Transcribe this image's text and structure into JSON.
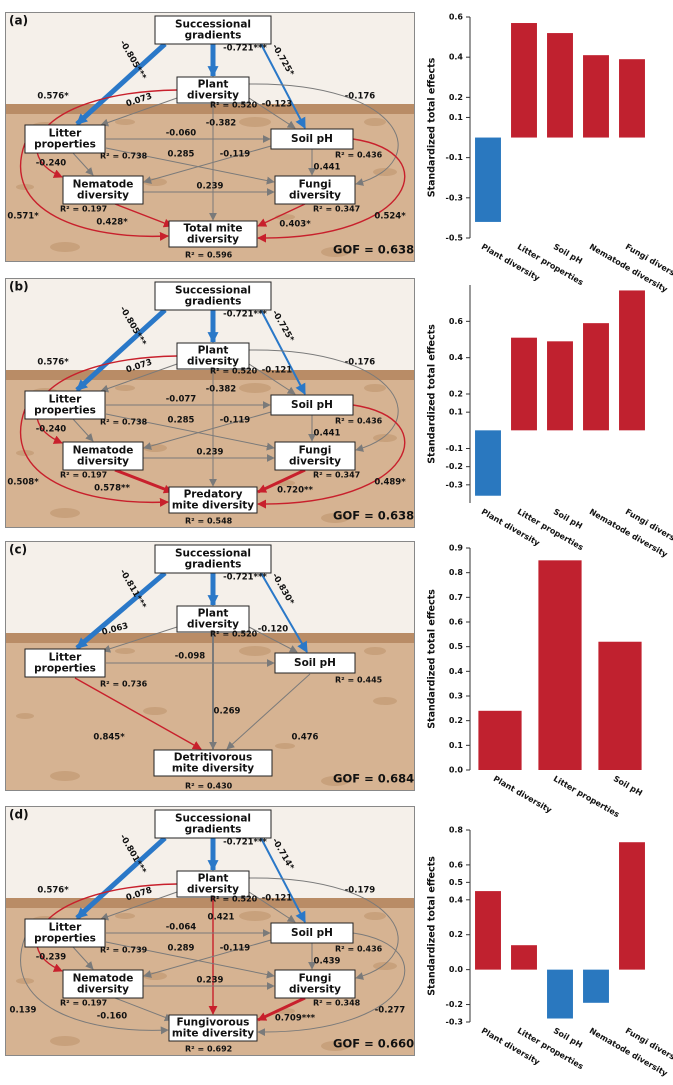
{
  "diagrams": [
    {
      "label": "(a)",
      "nodes": [
        {
          "label": [
            "Successional",
            "gradients"
          ]
        },
        {
          "label": [
            "Plant",
            "diversity"
          ],
          "r2": "R² = 0.520"
        },
        {
          "label": [
            "Litter",
            "properties"
          ],
          "r2": "R² = 0.738"
        },
        {
          "label": [
            "Soil pH"
          ],
          "r2": "R² = 0.436"
        },
        {
          "label": [
            "Nematode",
            "diversity"
          ],
          "r2": "R² = 0.197"
        },
        {
          "label": [
            "Fungi",
            "diversity"
          ],
          "r2": "R² = 0.347"
        },
        {
          "label": [
            "Total mite",
            "diversity"
          ],
          "r2": "R² = 0.596"
        }
      ],
      "coefficients": [
        "-0.805***",
        "-0.721***",
        "-0.725*",
        "0.576*",
        "0.073",
        "-0.123",
        "-0.176",
        "-0.382",
        "-0.060",
        "0.285",
        "-0.119",
        "-0.240",
        "0.441",
        "0.239",
        "0.571*",
        "0.428*",
        "0.403*",
        "0.524*"
      ],
      "gof": "GOF = 0.638"
    },
    {
      "label": "(b)",
      "nodes": [
        {
          "label": [
            "Successional",
            "gradients"
          ]
        },
        {
          "label": [
            "Plant",
            "diversity"
          ],
          "r2": "R² = 0.520"
        },
        {
          "label": [
            "Litter",
            "properties"
          ],
          "r2": "R² = 0.738"
        },
        {
          "label": [
            "Soil pH"
          ],
          "r2": "R² = 0.436"
        },
        {
          "label": [
            "Nematode",
            "diversity"
          ],
          "r2": "R² = 0.197"
        },
        {
          "label": [
            "Fungi",
            "diversity"
          ],
          "r2": "R² = 0.347"
        },
        {
          "label": [
            "Predatory",
            "mite diversity"
          ],
          "r2": "R² = 0.548"
        }
      ],
      "coefficients": [
        "-0.805***",
        "-0.721***",
        "-0.725*",
        "0.576*",
        "0.073",
        "-0.121",
        "-0.176",
        "-0.382",
        "-0.077",
        "0.285",
        "-0.119",
        "-0.240",
        "0.441",
        "0.239",
        "0.508*",
        "0.578**",
        "0.720**",
        "0.489*"
      ],
      "gof": "GOF = 0.638"
    },
    {
      "label": "(c)",
      "nodes": [
        {
          "label": [
            "Successional",
            "gradients"
          ]
        },
        {
          "label": [
            "Plant",
            "diversity"
          ],
          "r2": "R² = 0.520"
        },
        {
          "label": [
            "Litter",
            "properties"
          ],
          "r2": "R² = 0.736"
        },
        {
          "label": [
            "Soil pH"
          ],
          "r2": "R² = 0.445"
        },
        {
          "label": [
            "Detritivorous",
            "mite diversity"
          ],
          "r2": "R² = 0.430"
        }
      ],
      "coefficients": [
        "-0.811***",
        "-0.721***",
        "-0.830*",
        "0.063",
        "-0.120",
        "-0.098",
        "0.269",
        "0.845*",
        "0.476"
      ],
      "gof": "GOF = 0.684"
    },
    {
      "label": "(d)",
      "nodes": [
        {
          "label": [
            "Successional",
            "gradients"
          ]
        },
        {
          "label": [
            "Plant",
            "diversity"
          ],
          "r2": "R² = 0.520"
        },
        {
          "label": [
            "Litter",
            "properties"
          ],
          "r2": "R² = 0.739"
        },
        {
          "label": [
            "Soil pH"
          ],
          "r2": "R² = 0.436"
        },
        {
          "label": [
            "Nematode",
            "diversity"
          ],
          "r2": "R² = 0.197"
        },
        {
          "label": [
            "Fungi",
            "diversity"
          ],
          "r2": "R² = 0.348"
        },
        {
          "label": [
            "Fungivorous",
            "mite diversity"
          ],
          "r2": "R² = 0.692"
        }
      ],
      "coefficients": [
        "-0.801***",
        "-0.721***",
        "-0.714*",
        "0.576*",
        "0.078",
        "-0.121",
        "-0.179",
        "0.421",
        "-0.064",
        "0.289",
        "-0.119",
        "-0.239",
        "0.439",
        "0.239",
        "0.139",
        "-0.160",
        "0.709***",
        "-0.277"
      ],
      "gof": "GOF = 0.660"
    }
  ],
  "chart_data": [
    {
      "type": "bar",
      "y_label": "Standardized total effects",
      "categories": [
        "Plant diversity",
        "Litter properties",
        "Soil pH",
        "Nematode diversity",
        "Fungi diversity"
      ],
      "values": [
        -0.42,
        0.57,
        0.52,
        0.41,
        0.39
      ],
      "colors": [
        "#2a78bf",
        "#c0212f",
        "#c0212f",
        "#c0212f",
        "#c0212f"
      ],
      "ylim": [
        -0.5,
        0.6
      ],
      "yticks": [
        0.6,
        0.4,
        0.2,
        0.1,
        -0.1,
        -0.3,
        -0.5
      ]
    },
    {
      "type": "bar",
      "y_label": "Standardized total effects",
      "categories": [
        "Plant diversity",
        "Litter properties",
        "Soil pH",
        "Nematode diversity",
        "Fungi diversity"
      ],
      "values": [
        -0.36,
        0.51,
        0.49,
        0.59,
        0.77
      ],
      "colors": [
        "#2a78bf",
        "#c0212f",
        "#c0212f",
        "#c0212f",
        "#c0212f"
      ],
      "ylim": [
        -0.4,
        0.8
      ],
      "yticks": [
        0.6,
        0.4,
        0.2,
        0.1,
        -0.1,
        -0.2,
        -0.3
      ]
    },
    {
      "type": "bar",
      "y_label": "Standardized total effects",
      "categories": [
        "Plant diversity",
        "Litter properties",
        "Soil pH"
      ],
      "values": [
        0.24,
        0.85,
        0.52
      ],
      "colors": [
        "#c0212f",
        "#c0212f",
        "#c0212f"
      ],
      "ylim": [
        0,
        0.9
      ],
      "yticks": [
        0.9,
        0.8,
        0.7,
        0.6,
        0.5,
        0.4,
        0.3,
        0.2,
        0.1,
        {
          "value": 0,
          "label": "0.0"
        }
      ]
    },
    {
      "type": "bar",
      "y_label": "Standardized total effects",
      "categories": [
        "Plant diversity",
        "Litter properties",
        "Soil pH",
        "Nematode diversity",
        "Fungi diversity"
      ],
      "values": [
        0.45,
        0.14,
        -0.28,
        -0.19,
        0.73
      ],
      "colors": [
        "#c0212f",
        "#c0212f",
        "#2a78bf",
        "#2a78bf",
        "#c0212f"
      ],
      "ylim": [
        -0.3,
        0.8
      ],
      "yticks": [
        0.8,
        0.6,
        0.5,
        0.4,
        0.2,
        {
          "value": 0,
          "label": "0.0"
        },
        -0.2,
        -0.3
      ]
    }
  ]
}
